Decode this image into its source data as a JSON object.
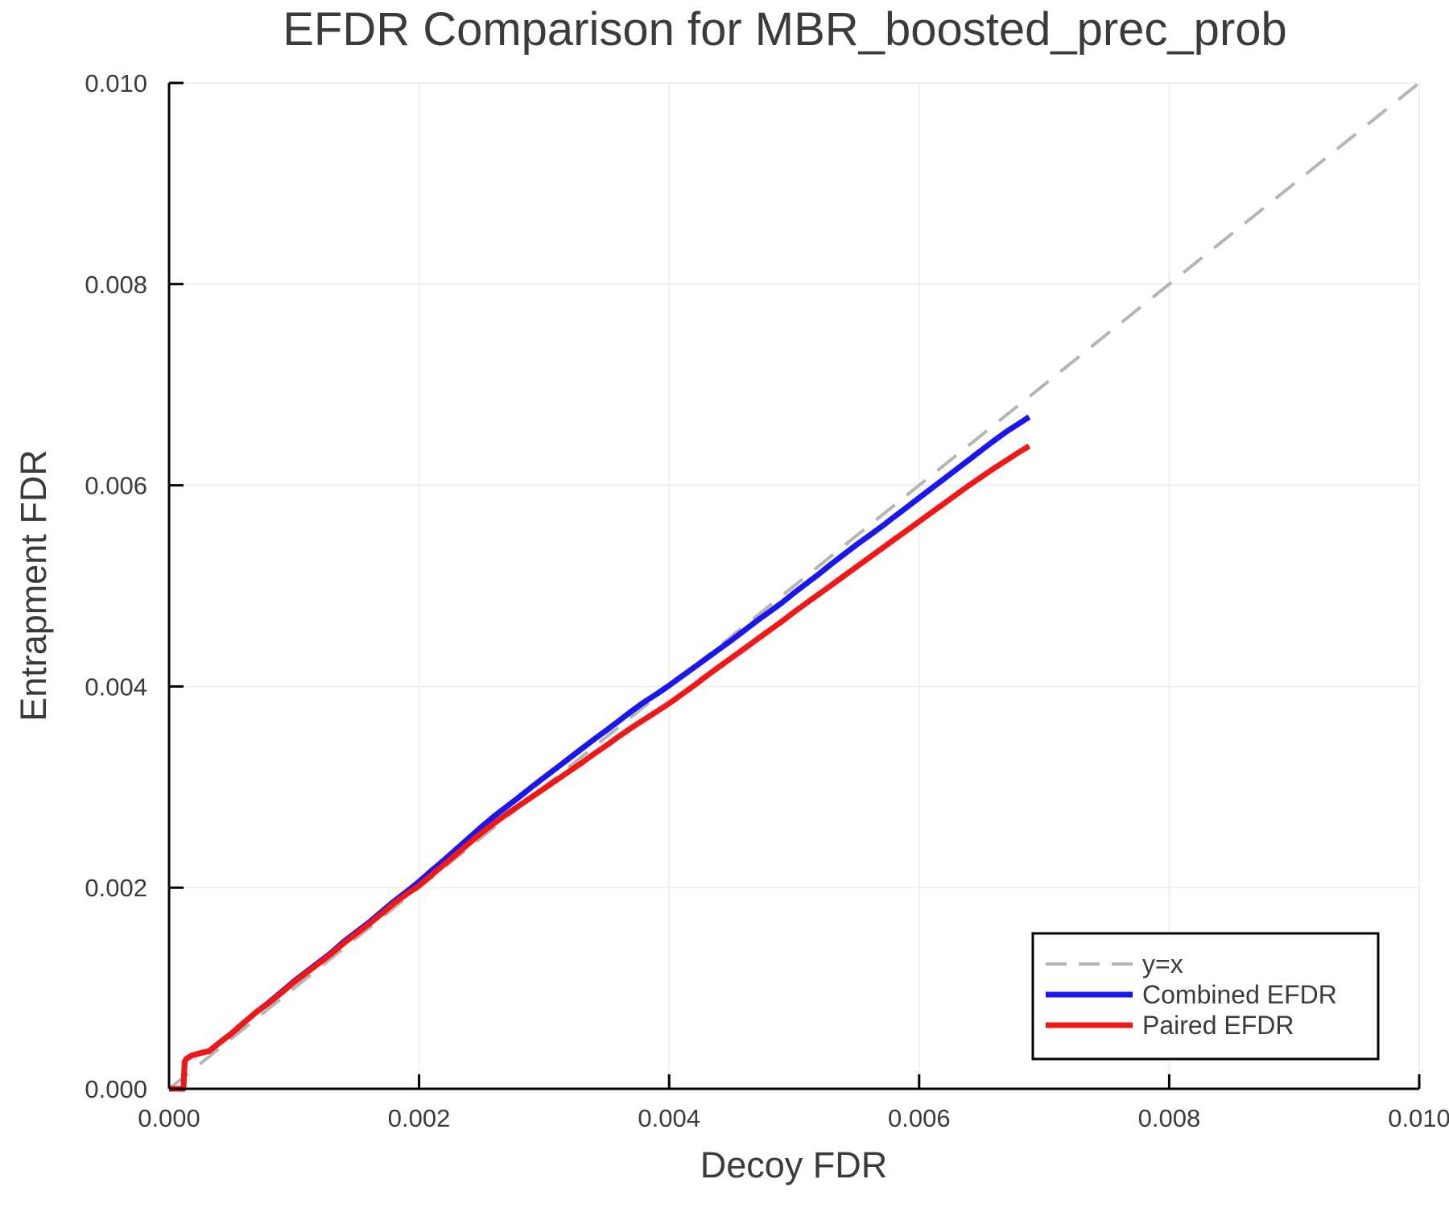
{
  "chart_data": {
    "type": "line",
    "title": "EFDR Comparison for MBR_boosted_prec_prob",
    "xlabel": "Decoy FDR",
    "ylabel": "Entrapment FDR",
    "xlim": [
      0.0,
      0.01
    ],
    "ylim": [
      0.0,
      0.01
    ],
    "grid": true,
    "xticks": {
      "values": [
        0.0,
        0.002,
        0.004,
        0.006,
        0.008,
        0.01
      ],
      "labels": [
        "0.000",
        "0.002",
        "0.004",
        "0.006",
        "0.008",
        "0.010"
      ]
    },
    "yticks": {
      "values": [
        0.0,
        0.002,
        0.004,
        0.006,
        0.008,
        0.01
      ],
      "labels": [
        "0.000",
        "0.002",
        "0.004",
        "0.006",
        "0.008",
        "0.010"
      ]
    },
    "legend": {
      "position": "lower right"
    },
    "colors": {
      "background": "#ffffff",
      "grid": "#ebebeb",
      "spine": "#000000",
      "text": "#3b3b3b"
    },
    "series": [
      {
        "name": "y=x",
        "style": "dashed",
        "color": "#b5b5b5",
        "width": 4,
        "points": [
          [
            0.0,
            0.0
          ],
          [
            0.01,
            0.01
          ]
        ]
      },
      {
        "name": "Combined EFDR",
        "style": "solid",
        "color": "#1a17ee",
        "width": 7,
        "points": [
          [
            0.0,
            0.0
          ],
          [
            0.000115,
            0.0
          ],
          [
            0.000125,
            0.00027
          ],
          [
            0.00014,
            0.0003
          ],
          [
            0.00018,
            0.00033
          ],
          [
            0.00025,
            0.000355
          ],
          [
            0.00032,
            0.000375
          ],
          [
            0.0004,
            0.000455
          ],
          [
            0.0005,
            0.00055
          ],
          [
            0.0006,
            0.00066
          ],
          [
            0.0007,
            0.000765
          ],
          [
            0.0008,
            0.00086
          ],
          [
            0.0009,
            0.000965
          ],
          [
            0.001,
            0.00107
          ],
          [
            0.0011,
            0.001165
          ],
          [
            0.0012,
            0.00126
          ],
          [
            0.0013,
            0.001355
          ],
          [
            0.0014,
            0.001465
          ],
          [
            0.0015,
            0.00156
          ],
          [
            0.0016,
            0.001655
          ],
          [
            0.0017,
            0.00176
          ],
          [
            0.0018,
            0.001865
          ],
          [
            0.0019,
            0.00196
          ],
          [
            0.002,
            0.00206
          ],
          [
            0.0021,
            0.00217
          ],
          [
            0.0022,
            0.002275
          ],
          [
            0.0023,
            0.002385
          ],
          [
            0.0024,
            0.002495
          ],
          [
            0.0025,
            0.002605
          ],
          [
            0.0026,
            0.00271
          ],
          [
            0.0027,
            0.002805
          ],
          [
            0.0028,
            0.0029
          ],
          [
            0.0029,
            0.003
          ],
          [
            0.003,
            0.003095
          ],
          [
            0.0031,
            0.00319
          ],
          [
            0.0032,
            0.003285
          ],
          [
            0.0033,
            0.00338
          ],
          [
            0.0034,
            0.003475
          ],
          [
            0.0035,
            0.003565
          ],
          [
            0.0036,
            0.00366
          ],
          [
            0.0037,
            0.003755
          ],
          [
            0.0038,
            0.003845
          ],
          [
            0.0039,
            0.003925
          ],
          [
            0.004,
            0.00401
          ],
          [
            0.0041,
            0.0041
          ],
          [
            0.0042,
            0.00419
          ],
          [
            0.0043,
            0.00428
          ],
          [
            0.0044,
            0.00437
          ],
          [
            0.0045,
            0.00446
          ],
          [
            0.0046,
            0.004555
          ],
          [
            0.0047,
            0.00465
          ],
          [
            0.0048,
            0.00474
          ],
          [
            0.0049,
            0.00483
          ],
          [
            0.005,
            0.00493
          ],
          [
            0.0051,
            0.005025
          ],
          [
            0.0052,
            0.00512
          ],
          [
            0.0053,
            0.00522
          ],
          [
            0.0054,
            0.005315
          ],
          [
            0.0055,
            0.00541
          ],
          [
            0.0056,
            0.0055
          ],
          [
            0.0057,
            0.00559
          ],
          [
            0.0058,
            0.005685
          ],
          [
            0.0059,
            0.00578
          ],
          [
            0.006,
            0.005875
          ],
          [
            0.0061,
            0.00597
          ],
          [
            0.0062,
            0.006065
          ],
          [
            0.0063,
            0.00616
          ],
          [
            0.0064,
            0.006255
          ],
          [
            0.0065,
            0.00635
          ],
          [
            0.0066,
            0.006445
          ],
          [
            0.0067,
            0.006535
          ],
          [
            0.0068,
            0.006615
          ],
          [
            0.00688,
            0.00668
          ]
        ]
      },
      {
        "name": "Paired EFDR",
        "style": "solid",
        "color": "#f21717",
        "width": 7,
        "points": [
          [
            0.0,
            0.0
          ],
          [
            0.000115,
            0.0
          ],
          [
            0.000125,
            0.00027
          ],
          [
            0.00014,
            0.0003
          ],
          [
            0.00018,
            0.00033
          ],
          [
            0.00025,
            0.000355
          ],
          [
            0.00032,
            0.000375
          ],
          [
            0.0004,
            0.000455
          ],
          [
            0.0005,
            0.00055
          ],
          [
            0.0006,
            0.00066
          ],
          [
            0.0007,
            0.000765
          ],
          [
            0.0008,
            0.000855
          ],
          [
            0.0009,
            0.000955
          ],
          [
            0.001,
            0.00106
          ],
          [
            0.0011,
            0.001155
          ],
          [
            0.0012,
            0.00125
          ],
          [
            0.0013,
            0.001345
          ],
          [
            0.0014,
            0.00145
          ],
          [
            0.0015,
            0.001545
          ],
          [
            0.0016,
            0.00164
          ],
          [
            0.0017,
            0.00174
          ],
          [
            0.0018,
            0.001845
          ],
          [
            0.0019,
            0.001935
          ],
          [
            0.002,
            0.00202
          ],
          [
            0.0021,
            0.002125
          ],
          [
            0.0022,
            0.00223
          ],
          [
            0.0023,
            0.002335
          ],
          [
            0.0024,
            0.00244
          ],
          [
            0.0025,
            0.002545
          ],
          [
            0.0026,
            0.00264
          ],
          [
            0.0027,
            0.00273
          ],
          [
            0.0028,
            0.002815
          ],
          [
            0.0029,
            0.0029
          ],
          [
            0.003,
            0.002985
          ],
          [
            0.0031,
            0.00307
          ],
          [
            0.0032,
            0.003155
          ],
          [
            0.0033,
            0.00324
          ],
          [
            0.0034,
            0.00333
          ],
          [
            0.0035,
            0.003415
          ],
          [
            0.0036,
            0.003505
          ],
          [
            0.0037,
            0.00359
          ],
          [
            0.0038,
            0.00367
          ],
          [
            0.0039,
            0.00375
          ],
          [
            0.004,
            0.00383
          ],
          [
            0.0041,
            0.00392
          ],
          [
            0.0042,
            0.00401
          ],
          [
            0.0043,
            0.004105
          ],
          [
            0.0044,
            0.004195
          ],
          [
            0.0045,
            0.004285
          ],
          [
            0.0046,
            0.004375
          ],
          [
            0.0047,
            0.004465
          ],
          [
            0.0048,
            0.004555
          ],
          [
            0.0049,
            0.004645
          ],
          [
            0.005,
            0.00474
          ],
          [
            0.0051,
            0.00483
          ],
          [
            0.0052,
            0.00492
          ],
          [
            0.0053,
            0.00501
          ],
          [
            0.0054,
            0.0051
          ],
          [
            0.0055,
            0.00519
          ],
          [
            0.0056,
            0.00528
          ],
          [
            0.0057,
            0.00537
          ],
          [
            0.0058,
            0.00546
          ],
          [
            0.0059,
            0.00555
          ],
          [
            0.006,
            0.00564
          ],
          [
            0.0061,
            0.00573
          ],
          [
            0.0062,
            0.00582
          ],
          [
            0.0063,
            0.00591
          ],
          [
            0.0064,
            0.006
          ],
          [
            0.0065,
            0.006085
          ],
          [
            0.0066,
            0.00617
          ],
          [
            0.0067,
            0.00625
          ],
          [
            0.0068,
            0.00633
          ],
          [
            0.00688,
            0.00639
          ]
        ]
      }
    ]
  }
}
